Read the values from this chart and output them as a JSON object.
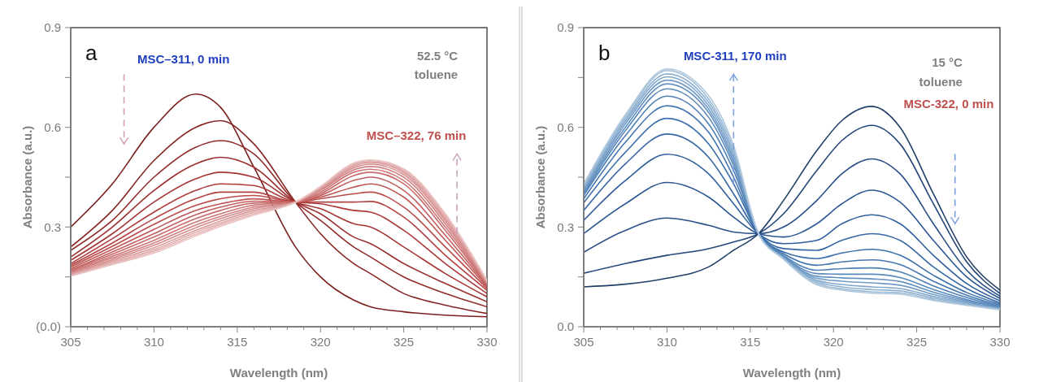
{
  "chart_data": [
    {
      "type": "line",
      "title": "a",
      "xlabel": "Wavelength (nm)",
      "ylabel": "Absorbance (a.u.)",
      "annotations": [
        "MSC–311, 0 min",
        "52.5 °C",
        "toluene",
        {
          "text": "MSC–322, 76 min",
          "x": 328.2,
          "y": 0.28
        }
      ],
      "xlim": [
        305,
        330
      ],
      "ylim": [
        0,
        0.9
      ],
      "xticks": [
        305,
        {
          "value": 306,
          "label": null
        },
        {
          "value": 307,
          "label": null
        },
        {
          "value": 308,
          "label": null
        },
        {
          "value": 309,
          "label": null
        },
        310,
        {
          "value": 311,
          "label": null
        },
        {
          "value": 312,
          "label": null
        },
        {
          "value": 313,
          "label": null
        },
        {
          "value": 314,
          "label": null
        },
        315,
        {
          "value": 316,
          "label": null
        },
        {
          "value": 317,
          "label": null
        },
        {
          "value": 318,
          "label": null
        },
        {
          "value": 319,
          "label": null
        },
        320,
        {
          "value": 321,
          "label": null
        },
        {
          "value": 322,
          "label": null
        },
        {
          "value": 323,
          "label": null
        },
        {
          "value": 324,
          "label": null
        },
        325,
        {
          "value": 326,
          "label": null
        },
        {
          "value": 327,
          "label": null
        },
        {
          "value": 328,
          "label": null
        },
        {
          "value": 329,
          "label": null
        },
        330
      ],
      "yticks": [
        {
          "value": 0,
          "label": "(0.0)"
        },
        {
          "value": 0.15,
          "label": null
        },
        0.3,
        {
          "value": 0.45,
          "label": null
        },
        0.6,
        {
          "value": 0.75,
          "label": null
        },
        0.9
      ],
      "x": [
        305,
        307.5,
        310,
        312.5,
        314,
        316,
        318.5,
        320,
        322,
        323,
        325,
        327.5,
        330
      ],
      "series": [
        {
          "color": "#7a1f1f",
          "values": [
            0.3,
            0.43,
            0.6,
            0.7,
            0.66,
            0.48,
            0.24,
            0.15,
            0.08,
            0.06,
            0.045,
            0.035,
            0.03
          ]
        },
        {
          "color": "#862424",
          "values": [
            0.24,
            0.35,
            0.5,
            0.6,
            0.62,
            0.55,
            0.375,
            0.28,
            0.19,
            0.16,
            0.1,
            0.065,
            0.04
          ]
        },
        {
          "color": "#922a2a",
          "values": [
            0.23,
            0.32,
            0.45,
            0.54,
            0.56,
            0.52,
            0.375,
            0.32,
            0.24,
            0.21,
            0.15,
            0.1,
            0.06
          ]
        },
        {
          "color": "#9c2f2f",
          "values": [
            0.21,
            0.3,
            0.41,
            0.49,
            0.51,
            0.48,
            0.375,
            0.34,
            0.27,
            0.25,
            0.19,
            0.13,
            0.075
          ]
        },
        {
          "color": "#a53434",
          "values": [
            0.2,
            0.28,
            0.375,
            0.445,
            0.465,
            0.45,
            0.375,
            0.355,
            0.31,
            0.3,
            0.24,
            0.16,
            0.09
          ]
        },
        {
          "color": "#ad3a3a",
          "values": [
            0.19,
            0.265,
            0.345,
            0.41,
            0.43,
            0.425,
            0.375,
            0.37,
            0.35,
            0.345,
            0.29,
            0.19,
            0.1
          ]
        },
        {
          "color": "#b44242",
          "values": [
            0.185,
            0.252,
            0.325,
            0.385,
            0.405,
            0.405,
            0.375,
            0.375,
            0.375,
            0.377,
            0.33,
            0.215,
            0.11
          ]
        },
        {
          "color": "#ba4b4b",
          "values": [
            0.18,
            0.242,
            0.308,
            0.365,
            0.385,
            0.395,
            0.375,
            0.385,
            0.4,
            0.405,
            0.36,
            0.24,
            0.115
          ]
        },
        {
          "color": "#bf5555",
          "values": [
            0.175,
            0.233,
            0.293,
            0.35,
            0.37,
            0.385,
            0.375,
            0.39,
            0.42,
            0.43,
            0.39,
            0.26,
            0.12
          ]
        },
        {
          "color": "#c35f5f",
          "values": [
            0.17,
            0.225,
            0.28,
            0.337,
            0.36,
            0.378,
            0.375,
            0.395,
            0.44,
            0.45,
            0.41,
            0.275,
            0.123
          ]
        },
        {
          "color": "#c86a6a",
          "values": [
            0.168,
            0.218,
            0.27,
            0.325,
            0.35,
            0.372,
            0.375,
            0.4,
            0.455,
            0.465,
            0.43,
            0.29,
            0.126
          ]
        },
        {
          "color": "#cc7575",
          "values": [
            0.165,
            0.212,
            0.26,
            0.315,
            0.34,
            0.366,
            0.375,
            0.405,
            0.465,
            0.474,
            0.44,
            0.3,
            0.128
          ]
        },
        {
          "color": "#d18181",
          "values": [
            0.163,
            0.207,
            0.252,
            0.306,
            0.332,
            0.36,
            0.375,
            0.41,
            0.472,
            0.482,
            0.45,
            0.31,
            0.13
          ]
        },
        {
          "color": "#d58d8d",
          "values": [
            0.16,
            0.202,
            0.245,
            0.298,
            0.325,
            0.355,
            0.375,
            0.413,
            0.478,
            0.489,
            0.458,
            0.318,
            0.132
          ]
        },
        {
          "color": "#da9999",
          "values": [
            0.158,
            0.198,
            0.238,
            0.29,
            0.318,
            0.35,
            0.375,
            0.416,
            0.483,
            0.494,
            0.464,
            0.324,
            0.134
          ]
        },
        {
          "color": "#dfa6a6",
          "values": [
            0.156,
            0.194,
            0.232,
            0.284,
            0.312,
            0.345,
            0.375,
            0.418,
            0.487,
            0.497,
            0.468,
            0.33,
            0.136
          ]
        },
        {
          "color": "#e4b3b3",
          "values": [
            0.154,
            0.19,
            0.227,
            0.278,
            0.307,
            0.34,
            0.375,
            0.42,
            0.49,
            0.5,
            0.472,
            0.335,
            0.138
          ]
        },
        {
          "color": "#e9c1c1",
          "values": [
            0.152,
            0.187,
            0.222,
            0.273,
            0.302,
            0.336,
            0.375,
            0.422,
            0.493,
            0.502,
            0.475,
            0.34,
            0.14
          ]
        }
      ]
    },
    {
      "type": "line",
      "title": "b",
      "xlabel": "Wavelength (nm)",
      "ylabel": "Absorbance (a.u.)",
      "annotations": [
        {
          "text": "MSC-311, 170 min",
          "x": 314,
          "y": 0.43
        },
        "15 °C",
        "toluene",
        "MSC-322, 0 min"
      ],
      "xlim": [
        305,
        330
      ],
      "ylim": [
        0,
        0.9
      ],
      "xticks": [
        305,
        {
          "value": 306,
          "label": null
        },
        {
          "value": 307,
          "label": null
        },
        {
          "value": 308,
          "label": null
        },
        {
          "value": 309,
          "label": null
        },
        310,
        {
          "value": 311,
          "label": null
        },
        {
          "value": 312,
          "label": null
        },
        {
          "value": 313,
          "label": null
        },
        {
          "value": 314,
          "label": null
        },
        315,
        {
          "value": 316,
          "label": null
        },
        {
          "value": 317,
          "label": null
        },
        {
          "value": 318,
          "label": null
        },
        {
          "value": 319,
          "label": null
        },
        320,
        {
          "value": 321,
          "label": null
        },
        {
          "value": 322,
          "label": null
        },
        {
          "value": 323,
          "label": null
        },
        {
          "value": 324,
          "label": null
        },
        325,
        {
          "value": 326,
          "label": null
        },
        {
          "value": 327,
          "label": null
        },
        {
          "value": 328,
          "label": null
        },
        {
          "value": 329,
          "label": null
        },
        330
      ],
      "yticks": [
        {
          "value": 0,
          "label": "0.0"
        },
        {
          "value": 0.15,
          "label": null
        },
        0.3,
        {
          "value": 0.45,
          "label": null
        },
        0.6,
        {
          "value": 0.75,
          "label": null
        },
        0.9
      ],
      "x": [
        305,
        307.5,
        310,
        312.5,
        314,
        315.5,
        317,
        319,
        320.5,
        322.3,
        324,
        326,
        328,
        330
      ],
      "series": [
        {
          "color": "#203e68",
          "values": [
            0.12,
            0.128,
            0.146,
            0.18,
            0.23,
            0.28,
            0.38,
            0.53,
            0.62,
            0.663,
            0.6,
            0.4,
            0.21,
            0.11
          ]
        },
        {
          "color": "#24467a",
          "values": [
            0.161,
            0.19,
            0.215,
            0.235,
            0.255,
            0.28,
            0.34,
            0.47,
            0.56,
            0.606,
            0.55,
            0.37,
            0.195,
            0.1
          ]
        },
        {
          "color": "#284f88",
          "values": [
            0.224,
            0.29,
            0.327,
            0.305,
            0.285,
            0.28,
            0.3,
            0.38,
            0.46,
            0.505,
            0.46,
            0.31,
            0.17,
            0.092
          ]
        },
        {
          "color": "#2c5793",
          "values": [
            0.28,
            0.37,
            0.434,
            0.39,
            0.33,
            0.28,
            0.27,
            0.31,
            0.37,
            0.411,
            0.375,
            0.26,
            0.15,
            0.085
          ]
        },
        {
          "color": "#305f9d",
          "values": [
            0.32,
            0.44,
            0.519,
            0.46,
            0.37,
            0.28,
            0.25,
            0.26,
            0.31,
            0.337,
            0.31,
            0.215,
            0.13,
            0.078
          ]
        },
        {
          "color": "#3567a5",
          "values": [
            0.35,
            0.49,
            0.58,
            0.51,
            0.4,
            0.28,
            0.235,
            0.23,
            0.26,
            0.28,
            0.26,
            0.18,
            0.115,
            0.072
          ]
        },
        {
          "color": "#3b6fab",
          "values": [
            0.373,
            0.525,
            0.627,
            0.55,
            0.43,
            0.28,
            0.225,
            0.205,
            0.222,
            0.233,
            0.215,
            0.155,
            0.103,
            0.068
          ]
        },
        {
          "color": "#4477b1",
          "values": [
            0.385,
            0.555,
            0.665,
            0.585,
            0.45,
            0.28,
            0.22,
            0.185,
            0.195,
            0.201,
            0.187,
            0.137,
            0.095,
            0.064
          ]
        },
        {
          "color": "#4e80b6",
          "values": [
            0.395,
            0.575,
            0.694,
            0.61,
            0.47,
            0.28,
            0.215,
            0.17,
            0.175,
            0.177,
            0.165,
            0.123,
            0.088,
            0.061
          ]
        },
        {
          "color": "#5989bc",
          "values": [
            0.4,
            0.59,
            0.716,
            0.63,
            0.485,
            0.28,
            0.212,
            0.16,
            0.158,
            0.158,
            0.148,
            0.112,
            0.082,
            0.059
          ]
        },
        {
          "color": "#6592c1",
          "values": [
            0.405,
            0.6,
            0.731,
            0.645,
            0.495,
            0.28,
            0.21,
            0.152,
            0.147,
            0.144,
            0.136,
            0.104,
            0.078,
            0.057
          ]
        },
        {
          "color": "#729cc6",
          "values": [
            0.41,
            0.61,
            0.742,
            0.655,
            0.505,
            0.28,
            0.208,
            0.146,
            0.137,
            0.132,
            0.125,
            0.097,
            0.074,
            0.055
          ]
        },
        {
          "color": "#80a6cb",
          "values": [
            0.415,
            0.618,
            0.752,
            0.665,
            0.515,
            0.28,
            0.206,
            0.14,
            0.127,
            0.12,
            0.115,
            0.091,
            0.071,
            0.054
          ]
        },
        {
          "color": "#8fb1d1",
          "values": [
            0.42,
            0.625,
            0.761,
            0.675,
            0.525,
            0.28,
            0.205,
            0.135,
            0.12,
            0.112,
            0.108,
            0.086,
            0.068,
            0.053
          ]
        },
        {
          "color": "#9fbcd7",
          "values": [
            0.425,
            0.632,
            0.771,
            0.685,
            0.535,
            0.28,
            0.204,
            0.13,
            0.114,
            0.105,
            0.102,
            0.082,
            0.066,
            0.052
          ]
        },
        {
          "color": "#b0c8de",
          "values": [
            0.43,
            0.638,
            0.776,
            0.695,
            0.545,
            0.28,
            0.203,
            0.126,
            0.11,
            0.101,
            0.098,
            0.079,
            0.064,
            0.051
          ]
        }
      ]
    }
  ]
}
